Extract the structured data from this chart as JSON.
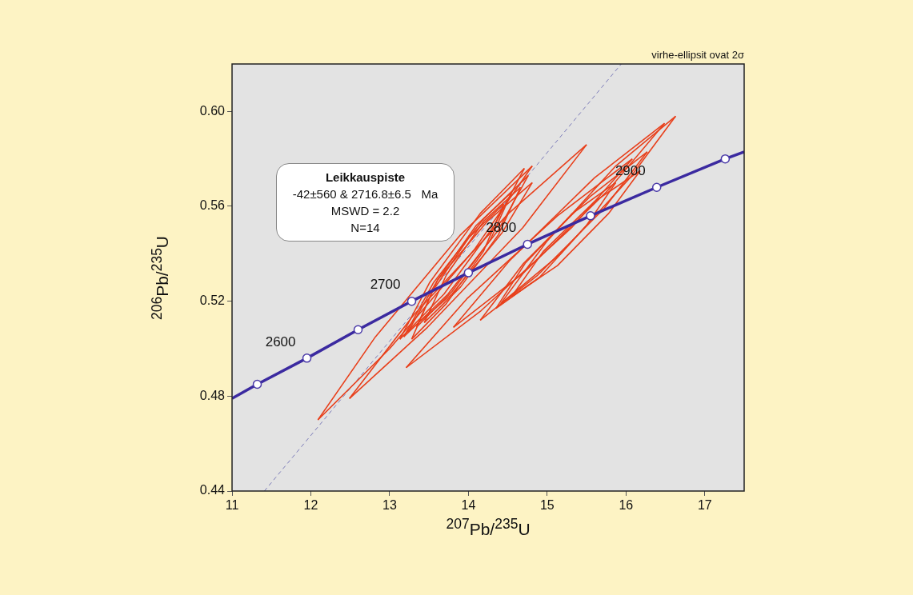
{
  "chart_data": {
    "type": "line",
    "xlabel": "$^{207}$Pb/$^{235}$U",
    "ylabel": "$^{206}$Pb/$^{235}$U",
    "xlim": [
      11,
      17.5
    ],
    "xticks": [
      11,
      12,
      13,
      14,
      15,
      16,
      17
    ],
    "ylim": [
      0.44,
      0.62
    ],
    "yticks": [
      {
        "value": 0.44,
        "label": "0.44"
      },
      {
        "value": 0.48,
        "label": "0.48"
      },
      {
        "value": 0.52,
        "label": "0.52"
      },
      {
        "value": 0.56,
        "label": "0.56"
      },
      {
        "value": 0.6,
        "label": "0.60"
      }
    ],
    "grid": false,
    "annotations": [
      "virhe-ellipsit ovat 2σ",
      "Leikkauspiste",
      "-42±560 & 2716.8±6.5   Ma",
      "MSWD = 2.2",
      "N=14",
      {
        "text": "2600",
        "x": 11.95,
        "y": 0.496
      },
      {
        "text": "2700",
        "x": 13.28,
        "y": 0.52
      },
      {
        "text": "2800",
        "x": 14.75,
        "y": 0.544
      },
      {
        "text": "2900",
        "x": 16.39,
        "y": 0.568
      }
    ],
    "series": [
      {
        "type": "line",
        "color": "#7a7ab8",
        "line_style": "dashed",
        "marker": "none",
        "x": [
          11.41,
          15.94
        ],
        "values": [
          0.44,
          0.62
        ]
      },
      {
        "color": "#e8401c",
        "marker": "none",
        "x": [
          12.09,
          12.82,
          13.9,
          14.81
        ],
        "values": [
          0.47,
          0.505,
          0.548,
          0.577
        ]
      },
      {
        "color": "#e8401c",
        "marker": "none",
        "x": [
          12.09,
          13.0,
          14.08,
          14.81
        ],
        "values": [
          0.47,
          0.5,
          0.542,
          0.577
        ]
      },
      {
        "color": "#e8401c",
        "marker": "none",
        "x": [
          12.49,
          13.3,
          14.51,
          15.5
        ],
        "values": [
          0.479,
          0.514,
          0.557,
          0.586
        ]
      },
      {
        "color": "#e8401c",
        "marker": "none",
        "x": [
          12.49,
          13.48,
          14.69,
          15.5
        ],
        "values": [
          0.479,
          0.509,
          0.551,
          0.586
        ]
      },
      {
        "color": "#e8401c",
        "marker": "none",
        "x": [
          13.18,
          13.56,
          14.2,
          14.76
        ],
        "values": [
          0.505,
          0.528,
          0.555,
          0.573
        ]
      },
      {
        "color": "#e8401c",
        "marker": "none",
        "x": [
          13.18,
          13.74,
          14.38,
          14.76
        ],
        "values": [
          0.505,
          0.523,
          0.55,
          0.573
        ]
      },
      {
        "color": "#e8401c",
        "marker": "none",
        "x": [
          13.13,
          13.51,
          14.15,
          14.71
        ],
        "values": [
          0.504,
          0.528,
          0.557,
          0.576
        ]
      },
      {
        "color": "#e8401c",
        "marker": "none",
        "x": [
          13.13,
          13.69,
          14.33,
          14.71
        ],
        "values": [
          0.504,
          0.523,
          0.552,
          0.576
        ]
      },
      {
        "color": "#e8401c",
        "marker": "none",
        "x": [
          13.23,
          13.61,
          14.25,
          14.81
        ],
        "values": [
          0.507,
          0.529,
          0.554,
          0.57
        ]
      },
      {
        "color": "#e8401c",
        "marker": "none",
        "x": [
          13.23,
          13.79,
          14.43,
          14.81
        ],
        "values": [
          0.507,
          0.523,
          0.549,
          0.57
        ]
      },
      {
        "color": "#e8401c",
        "marker": "none",
        "x": [
          13.34,
          13.61,
          14.1,
          14.55
        ],
        "values": [
          0.509,
          0.529,
          0.552,
          0.566
        ]
      },
      {
        "color": "#e8401c",
        "marker": "none",
        "x": [
          13.34,
          13.79,
          14.28,
          14.55
        ],
        "values": [
          0.509,
          0.524,
          0.546,
          0.566
        ]
      },
      {
        "color": "#e8401c",
        "marker": "none",
        "x": [
          13.28,
          13.54,
          14.01,
          14.45
        ],
        "values": [
          0.504,
          0.524,
          0.547,
          0.561
        ]
      },
      {
        "color": "#e8401c",
        "marker": "none",
        "x": [
          13.28,
          13.72,
          14.19,
          14.45
        ],
        "values": [
          0.504,
          0.519,
          0.541,
          0.561
        ]
      },
      {
        "color": "#e8401c",
        "marker": "none",
        "x": [
          13.44,
          13.72,
          14.2,
          14.66
        ],
        "values": [
          0.511,
          0.531,
          0.554,
          0.568
        ]
      },
      {
        "color": "#e8401c",
        "marker": "none",
        "x": [
          13.44,
          13.9,
          14.38,
          14.66
        ],
        "values": [
          0.511,
          0.526,
          0.548,
          0.568
        ]
      },
      {
        "color": "#e8401c",
        "marker": "none",
        "x": [
          13.21,
          13.98,
          15.13,
          16.08
        ],
        "values": [
          0.492,
          0.521,
          0.556,
          0.58
        ]
      },
      {
        "color": "#e8401c",
        "marker": "none",
        "x": [
          13.21,
          14.16,
          15.31,
          16.08
        ],
        "values": [
          0.492,
          0.516,
          0.551,
          0.58
        ]
      },
      {
        "color": "#e8401c",
        "marker": "none",
        "x": [
          13.81,
          14.52,
          15.6,
          16.49
        ],
        "values": [
          0.509,
          0.537,
          0.572,
          0.595
        ]
      },
      {
        "color": "#e8401c",
        "marker": "none",
        "x": [
          13.81,
          14.7,
          15.78,
          16.49
        ],
        "values": [
          0.509,
          0.532,
          0.567,
          0.595
        ]
      },
      {
        "color": "#e8401c",
        "marker": "none",
        "x": [
          14.41,
          14.99,
          15.87,
          16.63
        ],
        "values": [
          0.519,
          0.545,
          0.577,
          0.598
        ]
      },
      {
        "color": "#e8401c",
        "marker": "none",
        "x": [
          14.41,
          15.17,
          16.05,
          16.63
        ],
        "values": [
          0.519,
          0.54,
          0.572,
          0.598
        ]
      },
      {
        "color": "#e8401c",
        "marker": "none",
        "x": [
          14.15,
          14.7,
          15.54,
          16.27
        ],
        "values": [
          0.512,
          0.536,
          0.564,
          0.583
        ]
      },
      {
        "color": "#e8401c",
        "marker": "none",
        "x": [
          14.15,
          14.88,
          15.72,
          16.27
        ],
        "values": [
          0.512,
          0.531,
          0.559,
          0.583
        ]
      },
      {
        "color": "#e8401c",
        "marker": "none",
        "x": [
          14.35,
          14.72,
          15.32,
          15.87
        ],
        "values": [
          0.517,
          0.536,
          0.557,
          0.57
        ]
      },
      {
        "color": "#e8401c",
        "marker": "none",
        "x": [
          14.35,
          14.9,
          15.5,
          15.87
        ],
        "values": [
          0.517,
          0.53,
          0.552,
          0.57
        ]
      },
      {
        "color": "#e8401c",
        "marker": "none",
        "x": [
          14.55,
          14.95,
          15.6,
          16.18
        ],
        "values": [
          0.522,
          0.541,
          0.562,
          0.575
        ]
      },
      {
        "color": "#e8401c",
        "marker": "none",
        "x": [
          14.55,
          15.13,
          15.78,
          16.18
        ],
        "values": [
          0.522,
          0.535,
          0.557,
          0.575
        ]
      },
      {
        "color": "#3b2aa0",
        "marker": "none",
        "x": [
          11,
          11.32,
          11.95,
          12.6,
          13.28,
          14.0,
          14.75,
          15.55,
          16.39,
          17.26,
          17.5
        ],
        "values": [
          0.479,
          0.485,
          0.496,
          0.508,
          0.52,
          0.532,
          0.544,
          0.556,
          0.568,
          0.58,
          0.583
        ]
      },
      {
        "type": "scatter",
        "color": "#ffffff",
        "marker": "circle",
        "x": [
          11.32,
          11.95,
          12.6,
          13.28,
          14.0,
          14.75,
          15.55,
          16.39,
          17.26
        ],
        "values": [
          0.485,
          0.496,
          0.508,
          0.52,
          0.532,
          0.544,
          0.556,
          0.568,
          0.58
        ]
      }
    ]
  }
}
